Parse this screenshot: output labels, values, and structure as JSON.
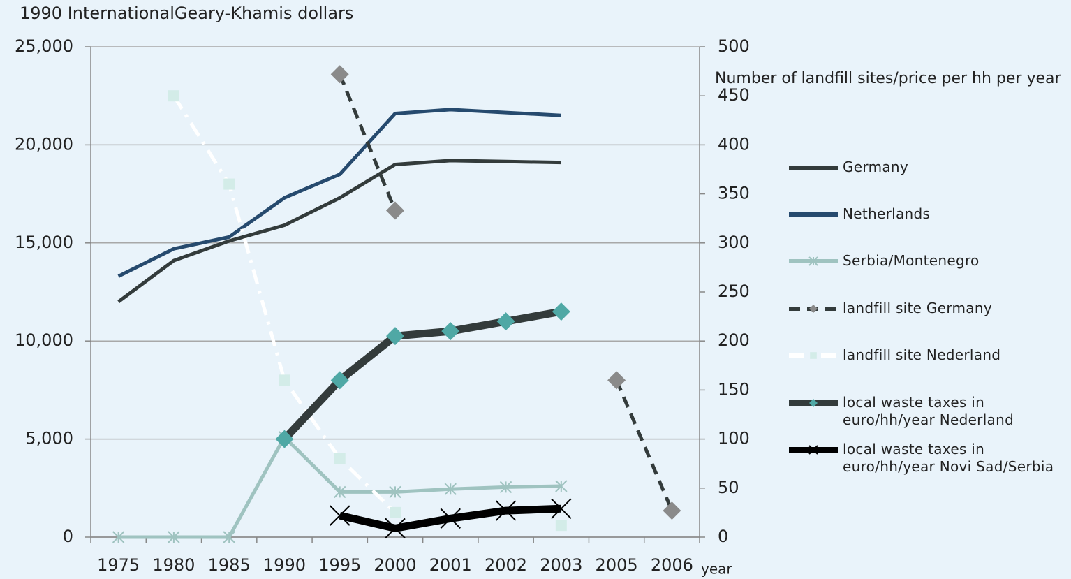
{
  "chart_data": {
    "type": "line",
    "y_label": "1990 InternationalGeary-Khamis dollars",
    "y2_label": "Number of landfill sites/price per hh per year",
    "x_label": "year",
    "categories": [
      "1975",
      "1980",
      "1985",
      "1990",
      "1995",
      "2000",
      "2001",
      "2002",
      "2003",
      "2005",
      "2006"
    ],
    "ylim": [
      0,
      25000
    ],
    "yticks": [
      {
        "value": 0,
        "label": "0"
      },
      {
        "value": 5000,
        "label": "5,000"
      },
      {
        "value": 10000,
        "label": "10,000"
      },
      {
        "value": 15000,
        "label": "15,000"
      },
      {
        "value": 20000,
        "label": "20,000"
      },
      {
        "value": 25000,
        "label": "25,000"
      }
    ],
    "y2lim": [
      0,
      500
    ],
    "y2ticks": [
      0,
      50,
      100,
      150,
      200,
      250,
      300,
      350,
      400,
      450,
      500
    ],
    "grid": true,
    "legend": "right",
    "series": [
      {
        "name": "Germany",
        "color": "#333b3b",
        "line_style": "solid",
        "marker": "none",
        "values": [
          12000,
          14100,
          15100,
          15900,
          17300,
          19000,
          19200,
          19150,
          19100,
          null,
          null
        ]
      },
      {
        "name": "Netherlands",
        "color": "#264a6e",
        "line_style": "solid",
        "marker": "none",
        "values": [
          13300,
          14700,
          15300,
          17300,
          18500,
          21600,
          21800,
          21650,
          21500,
          null,
          null
        ]
      },
      {
        "name": "Serbia/Montenegro",
        "color": "#9fc3c0",
        "line_style": "solid",
        "marker": "star",
        "marker_color": "#9fc3c0",
        "values": [
          0,
          0,
          0,
          5100,
          2300,
          2300,
          2450,
          2550,
          2600,
          null,
          null
        ]
      },
      {
        "name": "landfill site Germany",
        "color": "#333b3b",
        "line_style": "dashed",
        "marker": "diamond",
        "marker_color": "#8a8a8a",
        "axis": "y2",
        "values": [
          null,
          null,
          null,
          null,
          472,
          333,
          null,
          null,
          null,
          160,
          27
        ]
      },
      {
        "name": "landfill site Nederland",
        "color": "#ffffff",
        "line_style": "dashdot",
        "marker": "square",
        "marker_color": "#d3ece8",
        "axis": "y2",
        "values": [
          null,
          450,
          360,
          160,
          80,
          25,
          null,
          null,
          12,
          null,
          null
        ]
      },
      {
        "name": "local waste taxes in euro/hh/year Nederland",
        "color": "#333b3b",
        "line_style": "bold",
        "marker": "diamond",
        "marker_color": "#4fa8a5",
        "axis": "y2",
        "values": [
          null,
          null,
          null,
          100,
          160,
          205,
          210,
          220,
          230,
          null,
          null
        ]
      },
      {
        "name": "local waste taxes in euro/hh/year Novi Sad/Serbia",
        "color": "#000000",
        "line_style": "bold",
        "marker": "x",
        "marker_color": "#000000",
        "axis": "y2",
        "values": [
          null,
          null,
          null,
          null,
          22,
          9,
          19,
          27,
          29,
          null,
          null
        ]
      }
    ]
  }
}
